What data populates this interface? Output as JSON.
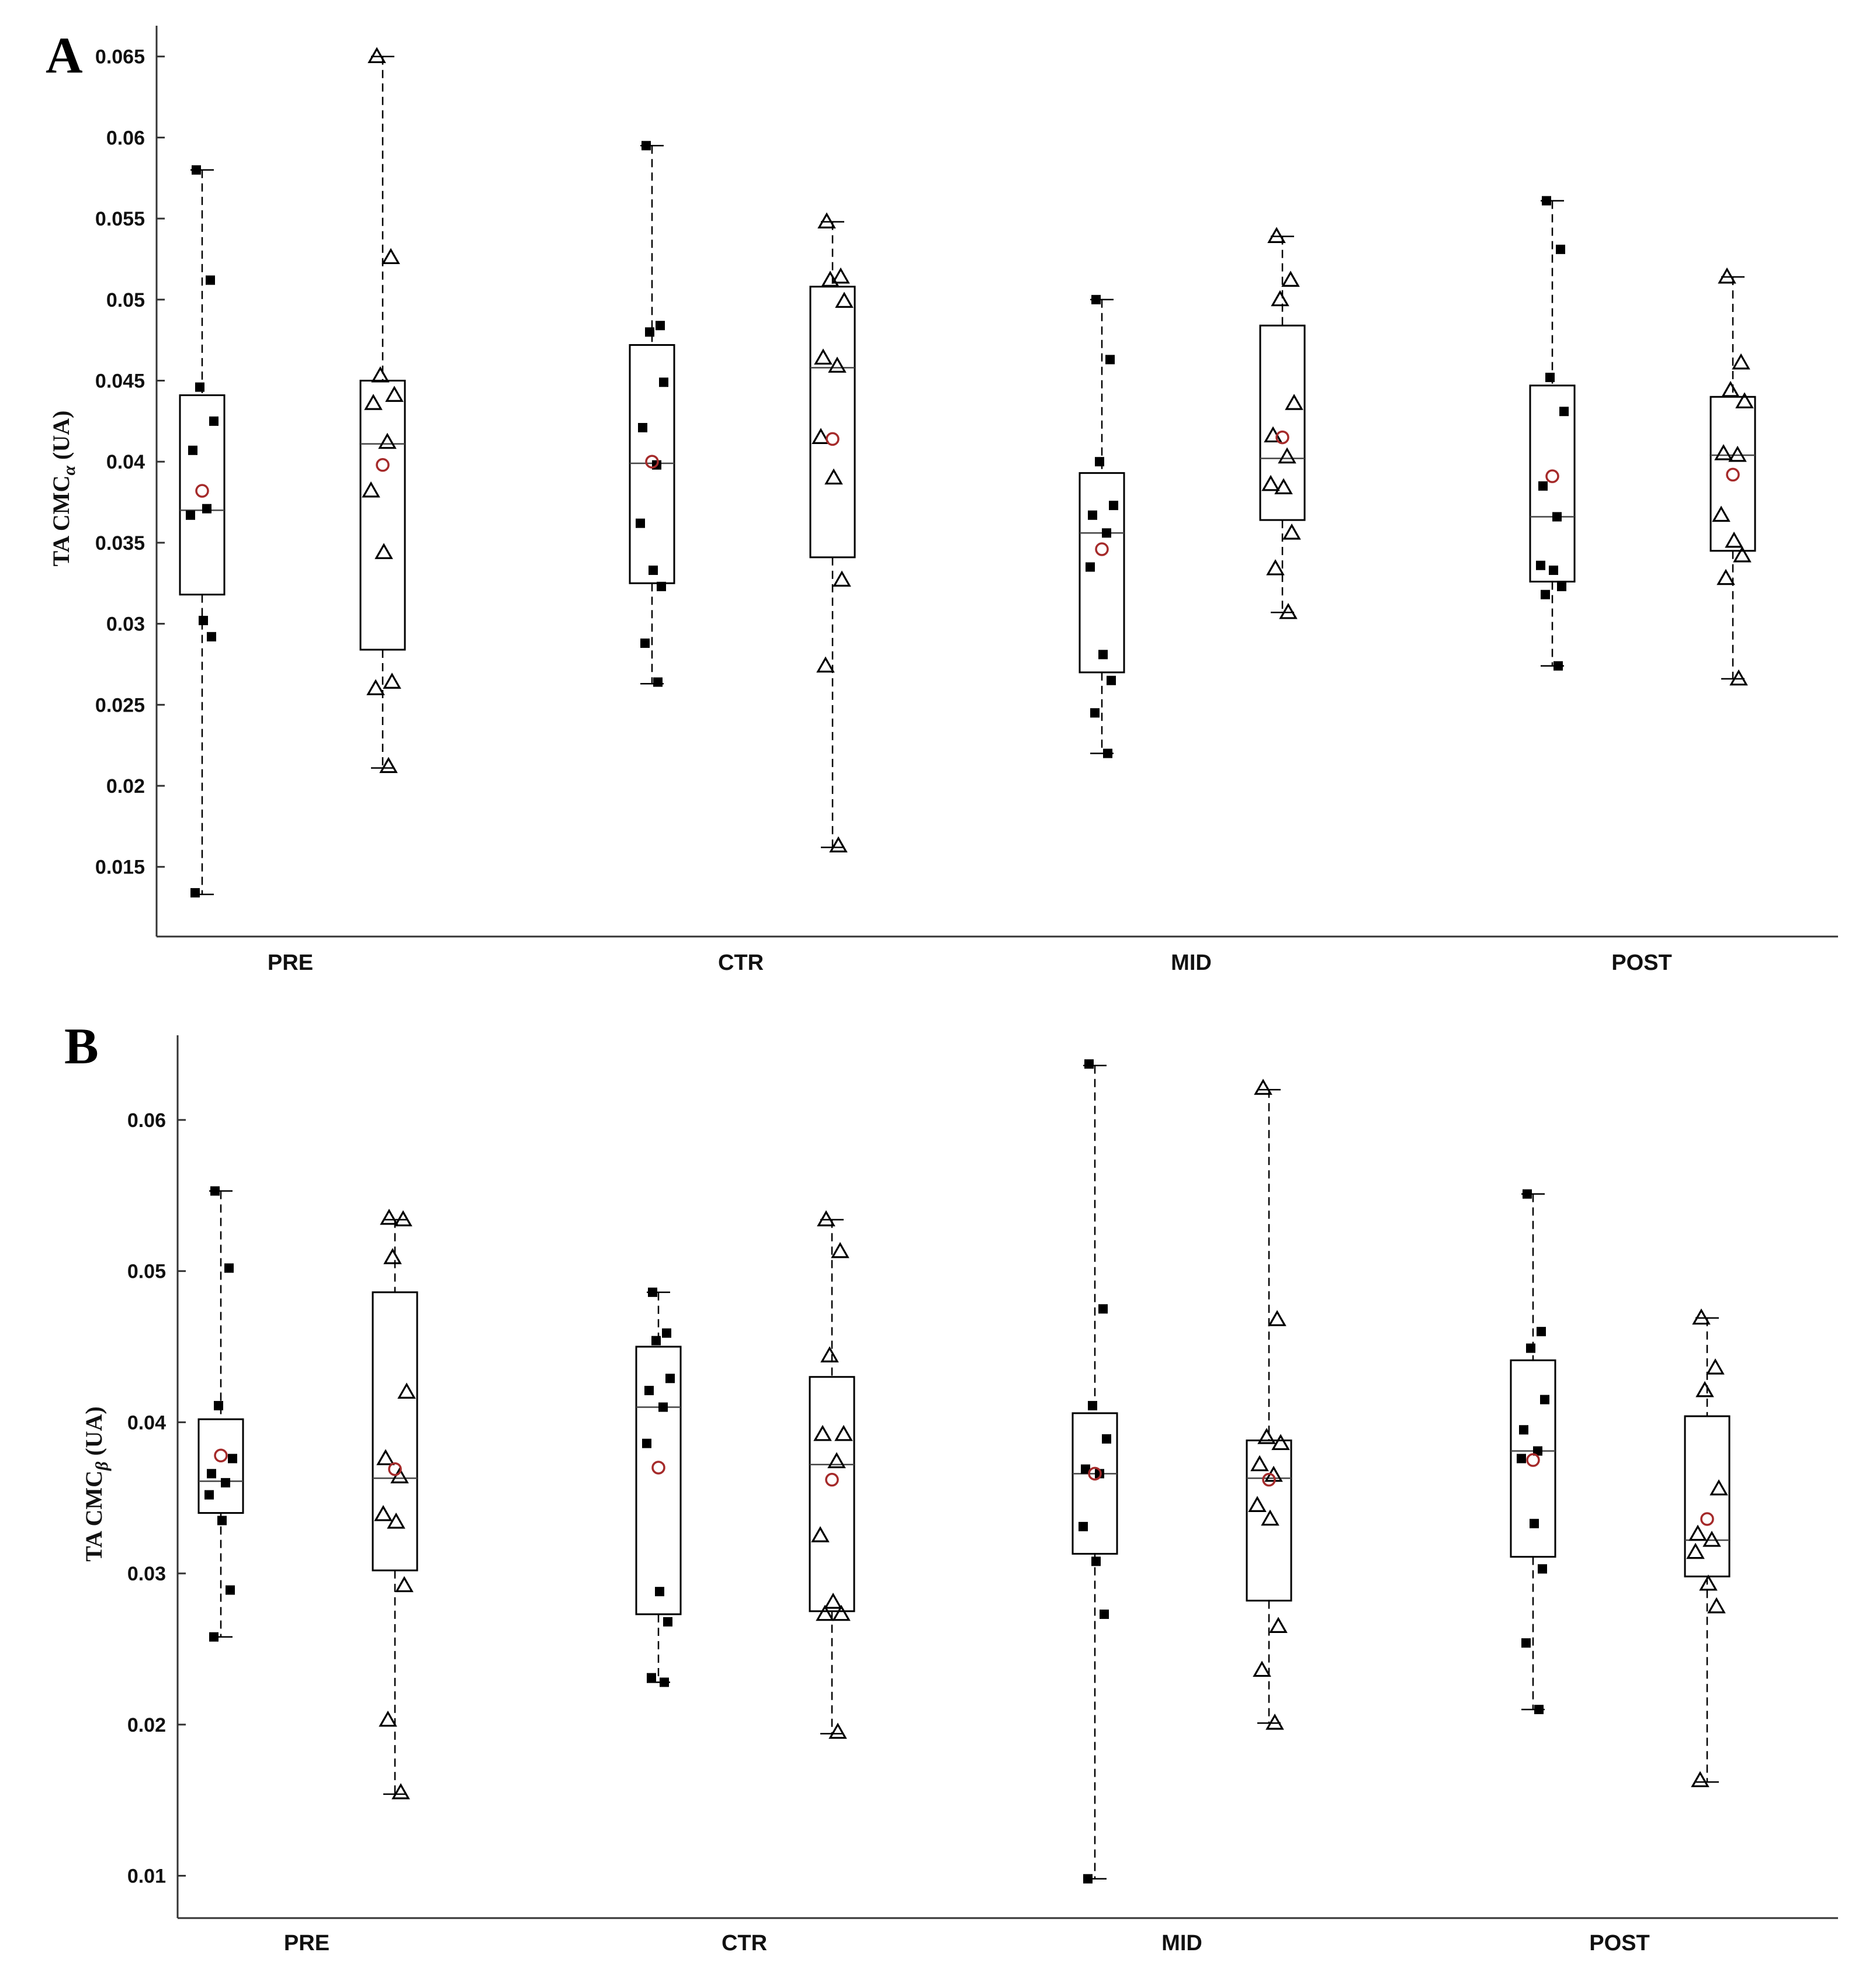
{
  "figure": {
    "colors": {
      "mean_marker": "#a52a2a",
      "box": "#000000",
      "point": "#000000"
    }
  },
  "chart_data": [
    {
      "type": "box",
      "panel": "A",
      "ylabel_prefix": "TA CMC",
      "ylabel_subscript": "α",
      "ylabel_suffix": " (UA)",
      "ylim": [
        0.0107,
        0.0669
      ],
      "yticks": [
        0.015,
        0.02,
        0.025,
        0.03,
        0.035,
        0.04,
        0.045,
        0.05,
        0.055,
        0.06,
        0.065
      ],
      "ytick_labels": [
        "0.015",
        "0.02",
        "0.025",
        "0.03",
        "0.035",
        "0.04",
        "0.045",
        "0.05",
        "0.055",
        "0.06",
        "0.065"
      ],
      "categories": [
        "PRE",
        "CTR",
        "MID",
        "POST"
      ],
      "series": [
        {
          "name": "squares",
          "marker": "square"
        },
        {
          "name": "triangles",
          "marker": "triangle"
        }
      ],
      "boxes": [
        {
          "category": "PRE",
          "series": "squares",
          "min": 0.0133,
          "q1": 0.0318,
          "median": 0.037,
          "q3": 0.0441,
          "max": 0.058,
          "mean": 0.0382,
          "points": [
            0.058,
            0.0512,
            0.0446,
            0.0425,
            0.0407,
            0.0371,
            0.0367,
            0.0302,
            0.0292,
            0.0134
          ]
        },
        {
          "category": "PRE",
          "series": "triangles",
          "min": 0.0211,
          "q1": 0.0284,
          "median": 0.0411,
          "q3": 0.045,
          "max": 0.065,
          "mean": 0.0398,
          "points": [
            0.065,
            0.0526,
            0.0453,
            0.0441,
            0.0436,
            0.0412,
            0.0382,
            0.0344,
            0.0264,
            0.026,
            0.0212
          ]
        },
        {
          "category": "CTR",
          "series": "squares",
          "min": 0.0263,
          "q1": 0.0325,
          "median": 0.0399,
          "q3": 0.0472,
          "max": 0.0595,
          "mean": 0.04,
          "points": [
            0.0595,
            0.0484,
            0.048,
            0.0449,
            0.0421,
            0.0398,
            0.0362,
            0.0333,
            0.0323,
            0.0288,
            0.0264
          ]
        },
        {
          "category": "CTR",
          "series": "triangles",
          "min": 0.0162,
          "q1": 0.0341,
          "median": 0.0458,
          "q3": 0.0508,
          "max": 0.0548,
          "mean": 0.0414,
          "points": [
            0.0548,
            0.0514,
            0.0512,
            0.0499,
            0.0464,
            0.0459,
            0.0415,
            0.039,
            0.0327,
            0.0274,
            0.0163
          ]
        },
        {
          "category": "MID",
          "series": "squares",
          "min": 0.022,
          "q1": 0.027,
          "median": 0.0356,
          "q3": 0.0393,
          "max": 0.05,
          "mean": 0.0346,
          "points": [
            0.05,
            0.0463,
            0.04,
            0.0373,
            0.0367,
            0.0356,
            0.0335,
            0.0281,
            0.0265,
            0.0245,
            0.022
          ]
        },
        {
          "category": "MID",
          "series": "triangles",
          "min": 0.0307,
          "q1": 0.0364,
          "median": 0.0402,
          "q3": 0.0484,
          "max": 0.0539,
          "mean": 0.0415,
          "points": [
            0.0539,
            0.0512,
            0.05,
            0.0436,
            0.0416,
            0.0403,
            0.0386,
            0.0384,
            0.0356,
            0.0334,
            0.0307
          ]
        },
        {
          "category": "POST",
          "series": "squares",
          "min": 0.0274,
          "q1": 0.0326,
          "median": 0.0366,
          "q3": 0.0447,
          "max": 0.0561,
          "mean": 0.0391,
          "points": [
            0.0561,
            0.0531,
            0.0452,
            0.0431,
            0.0385,
            0.0366,
            0.0336,
            0.0333,
            0.0323,
            0.0318,
            0.0274
          ]
        },
        {
          "category": "POST",
          "series": "triangles",
          "min": 0.0266,
          "q1": 0.0345,
          "median": 0.0404,
          "q3": 0.044,
          "max": 0.0514,
          "mean": 0.0392,
          "points": [
            0.0514,
            0.0461,
            0.0444,
            0.0437,
            0.0405,
            0.0404,
            0.0367,
            0.0351,
            0.0342,
            0.0328,
            0.0266
          ]
        }
      ]
    },
    {
      "type": "box",
      "panel": "B",
      "ylabel_prefix": "TA CMC",
      "ylabel_subscript": "β",
      "ylabel_suffix": " (UA)",
      "ylim": [
        0.0072,
        0.0656
      ],
      "yticks": [
        0.01,
        0.02,
        0.03,
        0.04,
        0.05,
        0.06
      ],
      "ytick_labels": [
        "0.01",
        "0.02",
        "0.03",
        "0.04",
        "0.05",
        "0.06"
      ],
      "categories": [
        "PRE",
        "CTR",
        "MID",
        "POST"
      ],
      "series": [
        {
          "name": "squares",
          "marker": "square"
        },
        {
          "name": "triangles",
          "marker": "triangle"
        }
      ],
      "boxes": [
        {
          "category": "PRE",
          "series": "squares",
          "min": 0.0258,
          "q1": 0.034,
          "median": 0.0361,
          "q3": 0.0402,
          "max": 0.0553,
          "mean": 0.0378,
          "points": [
            0.0553,
            0.0502,
            0.0411,
            0.0376,
            0.0366,
            0.036,
            0.0352,
            0.0335,
            0.0289,
            0.0258
          ]
        },
        {
          "category": "PRE",
          "series": "triangles",
          "min": 0.0154,
          "q1": 0.0302,
          "median": 0.0363,
          "q3": 0.0486,
          "max": 0.0534,
          "mean": 0.0369,
          "points": [
            0.0535,
            0.0534,
            0.0509,
            0.042,
            0.0376,
            0.0364,
            0.0339,
            0.0334,
            0.0292,
            0.0203,
            0.0155
          ]
        },
        {
          "category": "CTR",
          "series": "squares",
          "min": 0.0228,
          "q1": 0.0273,
          "median": 0.041,
          "q3": 0.045,
          "max": 0.0486,
          "mean": 0.037,
          "points": [
            0.0486,
            0.0459,
            0.0454,
            0.0429,
            0.0421,
            0.041,
            0.0386,
            0.0288,
            0.0268,
            0.0231,
            0.0228
          ]
        },
        {
          "category": "CTR",
          "series": "triangles",
          "min": 0.0194,
          "q1": 0.0275,
          "median": 0.0372,
          "q3": 0.043,
          "max": 0.0534,
          "mean": 0.0362,
          "points": [
            0.0534,
            0.0513,
            0.0444,
            0.0392,
            0.0392,
            0.0374,
            0.0325,
            0.0281,
            0.0273,
            0.0273,
            0.0195
          ]
        },
        {
          "category": "MID",
          "series": "squares",
          "min": 0.0098,
          "q1": 0.0313,
          "median": 0.0366,
          "q3": 0.0406,
          "max": 0.0636,
          "mean": 0.0366,
          "points": [
            0.0637,
            0.0475,
            0.0411,
            0.0389,
            0.0369,
            0.0366,
            0.0331,
            0.0308,
            0.0273,
            0.0098
          ]
        },
        {
          "category": "MID",
          "series": "triangles",
          "min": 0.0201,
          "q1": 0.0282,
          "median": 0.0363,
          "q3": 0.0388,
          "max": 0.062,
          "mean": 0.0362,
          "points": [
            0.0621,
            0.0468,
            0.039,
            0.0386,
            0.0372,
            0.0365,
            0.0345,
            0.0336,
            0.0265,
            0.0236,
            0.0201
          ]
        },
        {
          "category": "POST",
          "series": "squares",
          "min": 0.021,
          "q1": 0.0311,
          "median": 0.0381,
          "q3": 0.0441,
          "max": 0.0551,
          "mean": 0.0375,
          "points": [
            0.0551,
            0.046,
            0.0449,
            0.0415,
            0.0395,
            0.0381,
            0.0376,
            0.0333,
            0.0303,
            0.0254,
            0.021
          ]
        },
        {
          "category": "POST",
          "series": "triangles",
          "min": 0.0162,
          "q1": 0.0298,
          "median": 0.0322,
          "q3": 0.0404,
          "max": 0.0469,
          "mean": 0.0336,
          "points": [
            0.0469,
            0.0436,
            0.0421,
            0.0356,
            0.0326,
            0.0322,
            0.0314,
            0.0293,
            0.0278,
            0.0163
          ]
        }
      ]
    }
  ]
}
